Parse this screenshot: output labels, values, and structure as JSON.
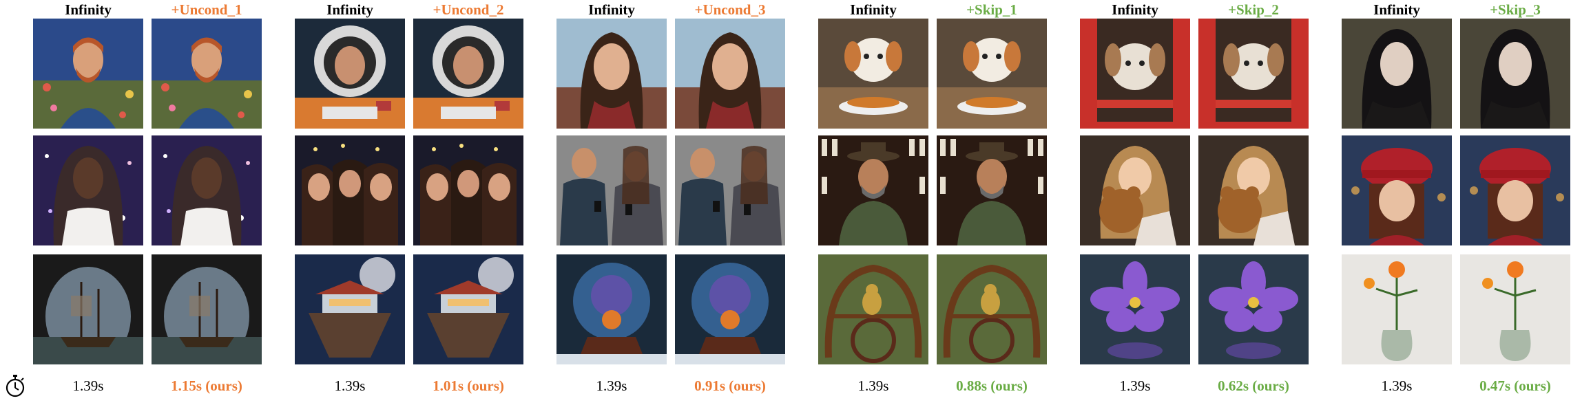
{
  "columns": [
    {
      "title": "Infinity",
      "color": "black",
      "time": "1.39s"
    },
    {
      "title": "+Uncond_1",
      "color": "orange",
      "time": "1.15s (ours)"
    },
    {
      "title": "Infinity",
      "color": "black",
      "time": "1.39s"
    },
    {
      "title": "+Uncond_2",
      "color": "orange",
      "time": "1.01s (ours)"
    },
    {
      "title": "Infinity",
      "color": "black",
      "time": "1.39s"
    },
    {
      "title": "+Uncond_3",
      "color": "orange",
      "time": "0.91s (ours)"
    },
    {
      "title": "Infinity",
      "color": "black",
      "time": "1.39s"
    },
    {
      "title": "+Skip_1",
      "color": "green",
      "time": "0.88s (ours)"
    },
    {
      "title": "Infinity",
      "color": "black",
      "time": "1.39s"
    },
    {
      "title": "+Skip_2",
      "color": "green",
      "time": "0.62s (ours)"
    },
    {
      "title": "Infinity",
      "color": "black",
      "time": "1.39s"
    },
    {
      "title": "+Skip_3",
      "color": "green",
      "time": "0.47s (ours)"
    }
  ],
  "accent_colors": {
    "uncond": "#ec7a33",
    "skip": "#6aac45"
  },
  "timer_icon": "stopwatch-icon",
  "images": [
    [
      "van-gogh-portrait",
      "astronaut",
      "woman-portrait",
      "puppy-eating",
      "puppy-window",
      "gothic-woman"
    ],
    [
      "woman-galaxy",
      "three-women-selfie",
      "couple-phones",
      "man-wine-cellar",
      "girl-teddy-bear",
      "girl-red-hat"
    ],
    [
      "ship-in-cave",
      "floating-house",
      "snow-globe",
      "bird-on-wheel",
      "purple-flower",
      "orange-flowers-vase"
    ]
  ]
}
